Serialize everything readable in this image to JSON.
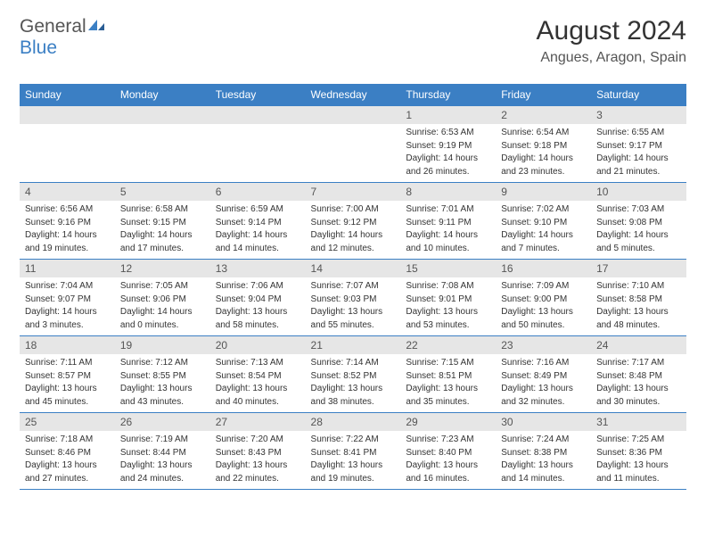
{
  "logo": {
    "text_a": "General",
    "text_b": "Blue"
  },
  "title": "August 2024",
  "location": "Angues, Aragon, Spain",
  "colors": {
    "accent": "#3b7fc4",
    "daynum_bg": "#e6e6e6",
    "text": "#333333",
    "background": "#ffffff"
  },
  "weekdays": [
    "Sunday",
    "Monday",
    "Tuesday",
    "Wednesday",
    "Thursday",
    "Friday",
    "Saturday"
  ],
  "weeks": [
    [
      null,
      null,
      null,
      null,
      {
        "n": "1",
        "sr": "Sunrise: 6:53 AM",
        "ss": "Sunset: 9:19 PM",
        "d1": "Daylight: 14 hours",
        "d2": "and 26 minutes."
      },
      {
        "n": "2",
        "sr": "Sunrise: 6:54 AM",
        "ss": "Sunset: 9:18 PM",
        "d1": "Daylight: 14 hours",
        "d2": "and 23 minutes."
      },
      {
        "n": "3",
        "sr": "Sunrise: 6:55 AM",
        "ss": "Sunset: 9:17 PM",
        "d1": "Daylight: 14 hours",
        "d2": "and 21 minutes."
      }
    ],
    [
      {
        "n": "4",
        "sr": "Sunrise: 6:56 AM",
        "ss": "Sunset: 9:16 PM",
        "d1": "Daylight: 14 hours",
        "d2": "and 19 minutes."
      },
      {
        "n": "5",
        "sr": "Sunrise: 6:58 AM",
        "ss": "Sunset: 9:15 PM",
        "d1": "Daylight: 14 hours",
        "d2": "and 17 minutes."
      },
      {
        "n": "6",
        "sr": "Sunrise: 6:59 AM",
        "ss": "Sunset: 9:14 PM",
        "d1": "Daylight: 14 hours",
        "d2": "and 14 minutes."
      },
      {
        "n": "7",
        "sr": "Sunrise: 7:00 AM",
        "ss": "Sunset: 9:12 PM",
        "d1": "Daylight: 14 hours",
        "d2": "and 12 minutes."
      },
      {
        "n": "8",
        "sr": "Sunrise: 7:01 AM",
        "ss": "Sunset: 9:11 PM",
        "d1": "Daylight: 14 hours",
        "d2": "and 10 minutes."
      },
      {
        "n": "9",
        "sr": "Sunrise: 7:02 AM",
        "ss": "Sunset: 9:10 PM",
        "d1": "Daylight: 14 hours",
        "d2": "and 7 minutes."
      },
      {
        "n": "10",
        "sr": "Sunrise: 7:03 AM",
        "ss": "Sunset: 9:08 PM",
        "d1": "Daylight: 14 hours",
        "d2": "and 5 minutes."
      }
    ],
    [
      {
        "n": "11",
        "sr": "Sunrise: 7:04 AM",
        "ss": "Sunset: 9:07 PM",
        "d1": "Daylight: 14 hours",
        "d2": "and 3 minutes."
      },
      {
        "n": "12",
        "sr": "Sunrise: 7:05 AM",
        "ss": "Sunset: 9:06 PM",
        "d1": "Daylight: 14 hours",
        "d2": "and 0 minutes."
      },
      {
        "n": "13",
        "sr": "Sunrise: 7:06 AM",
        "ss": "Sunset: 9:04 PM",
        "d1": "Daylight: 13 hours",
        "d2": "and 58 minutes."
      },
      {
        "n": "14",
        "sr": "Sunrise: 7:07 AM",
        "ss": "Sunset: 9:03 PM",
        "d1": "Daylight: 13 hours",
        "d2": "and 55 minutes."
      },
      {
        "n": "15",
        "sr": "Sunrise: 7:08 AM",
        "ss": "Sunset: 9:01 PM",
        "d1": "Daylight: 13 hours",
        "d2": "and 53 minutes."
      },
      {
        "n": "16",
        "sr": "Sunrise: 7:09 AM",
        "ss": "Sunset: 9:00 PM",
        "d1": "Daylight: 13 hours",
        "d2": "and 50 minutes."
      },
      {
        "n": "17",
        "sr": "Sunrise: 7:10 AM",
        "ss": "Sunset: 8:58 PM",
        "d1": "Daylight: 13 hours",
        "d2": "and 48 minutes."
      }
    ],
    [
      {
        "n": "18",
        "sr": "Sunrise: 7:11 AM",
        "ss": "Sunset: 8:57 PM",
        "d1": "Daylight: 13 hours",
        "d2": "and 45 minutes."
      },
      {
        "n": "19",
        "sr": "Sunrise: 7:12 AM",
        "ss": "Sunset: 8:55 PM",
        "d1": "Daylight: 13 hours",
        "d2": "and 43 minutes."
      },
      {
        "n": "20",
        "sr": "Sunrise: 7:13 AM",
        "ss": "Sunset: 8:54 PM",
        "d1": "Daylight: 13 hours",
        "d2": "and 40 minutes."
      },
      {
        "n": "21",
        "sr": "Sunrise: 7:14 AM",
        "ss": "Sunset: 8:52 PM",
        "d1": "Daylight: 13 hours",
        "d2": "and 38 minutes."
      },
      {
        "n": "22",
        "sr": "Sunrise: 7:15 AM",
        "ss": "Sunset: 8:51 PM",
        "d1": "Daylight: 13 hours",
        "d2": "and 35 minutes."
      },
      {
        "n": "23",
        "sr": "Sunrise: 7:16 AM",
        "ss": "Sunset: 8:49 PM",
        "d1": "Daylight: 13 hours",
        "d2": "and 32 minutes."
      },
      {
        "n": "24",
        "sr": "Sunrise: 7:17 AM",
        "ss": "Sunset: 8:48 PM",
        "d1": "Daylight: 13 hours",
        "d2": "and 30 minutes."
      }
    ],
    [
      {
        "n": "25",
        "sr": "Sunrise: 7:18 AM",
        "ss": "Sunset: 8:46 PM",
        "d1": "Daylight: 13 hours",
        "d2": "and 27 minutes."
      },
      {
        "n": "26",
        "sr": "Sunrise: 7:19 AM",
        "ss": "Sunset: 8:44 PM",
        "d1": "Daylight: 13 hours",
        "d2": "and 24 minutes."
      },
      {
        "n": "27",
        "sr": "Sunrise: 7:20 AM",
        "ss": "Sunset: 8:43 PM",
        "d1": "Daylight: 13 hours",
        "d2": "and 22 minutes."
      },
      {
        "n": "28",
        "sr": "Sunrise: 7:22 AM",
        "ss": "Sunset: 8:41 PM",
        "d1": "Daylight: 13 hours",
        "d2": "and 19 minutes."
      },
      {
        "n": "29",
        "sr": "Sunrise: 7:23 AM",
        "ss": "Sunset: 8:40 PM",
        "d1": "Daylight: 13 hours",
        "d2": "and 16 minutes."
      },
      {
        "n": "30",
        "sr": "Sunrise: 7:24 AM",
        "ss": "Sunset: 8:38 PM",
        "d1": "Daylight: 13 hours",
        "d2": "and 14 minutes."
      },
      {
        "n": "31",
        "sr": "Sunrise: 7:25 AM",
        "ss": "Sunset: 8:36 PM",
        "d1": "Daylight: 13 hours",
        "d2": "and 11 minutes."
      }
    ]
  ]
}
